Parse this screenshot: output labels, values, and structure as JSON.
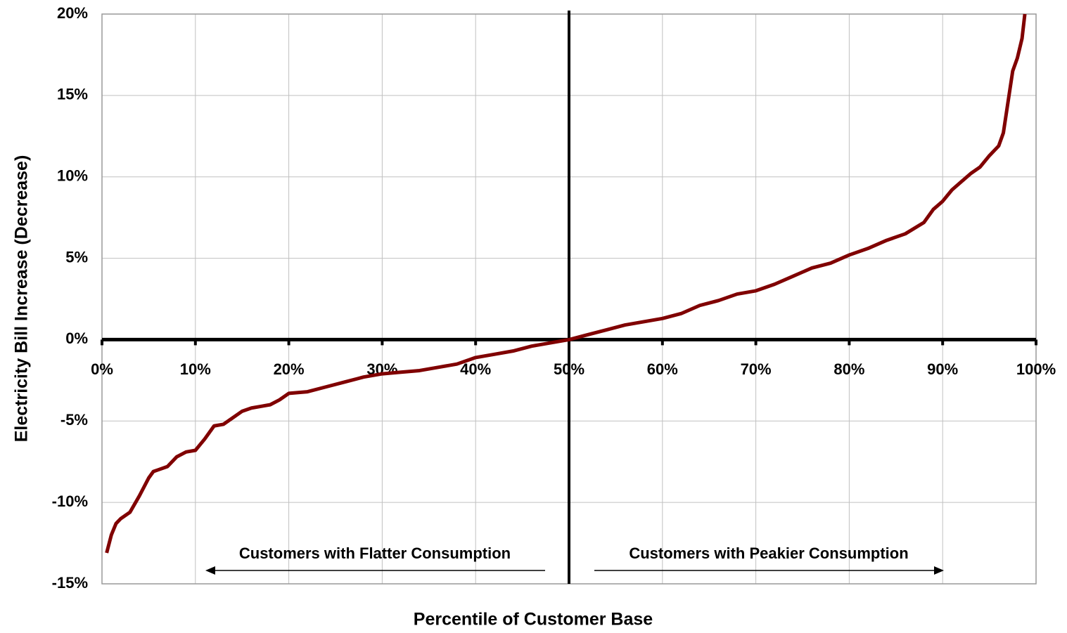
{
  "chart_data": {
    "type": "line",
    "x_label": "Percentile of Customer Base",
    "y_label": "Electricity Bill Increase (Decrease)",
    "annotations": [
      "Customers with Flatter Consumption",
      "Customers with Peakier Consumption"
    ],
    "x": [
      0.5,
      1,
      1.5,
      2,
      3,
      4,
      5,
      5.5,
      6,
      7,
      8,
      9,
      10,
      11,
      12,
      13,
      14,
      15,
      16,
      17,
      18,
      19,
      20,
      22,
      24,
      26,
      28,
      30,
      32,
      34,
      36,
      38,
      40,
      42,
      44,
      46,
      48,
      50,
      52,
      54,
      56,
      58,
      60,
      62,
      64,
      66,
      68,
      70,
      72,
      74,
      76,
      78,
      80,
      82,
      84,
      86,
      88,
      89,
      90,
      91,
      92,
      93,
      94,
      95,
      96,
      96.5,
      97,
      97.5,
      98,
      98.5,
      98.8
    ],
    "series": [
      {
        "color": "#800000",
        "values": [
          -13.1,
          -12,
          -11.3,
          -11.0,
          -10.6,
          -9.6,
          -8.5,
          -8.1,
          -8.0,
          -7.8,
          -7.2,
          -6.9,
          -6.8,
          -6.1,
          -5.3,
          -5.2,
          -4.8,
          -4.4,
          -4.2,
          -4.1,
          -4.0,
          -3.7,
          -3.3,
          -3.2,
          -2.9,
          -2.6,
          -2.3,
          -2.1,
          -2.0,
          -1.9,
          -1.7,
          -1.5,
          -1.1,
          -0.9,
          -0.7,
          -0.4,
          -0.2,
          0,
          0.3,
          0.6,
          0.9,
          1.1,
          1.3,
          1.6,
          2.1,
          2.4,
          2.8,
          3.0,
          3.4,
          3.9,
          4.4,
          4.7,
          5.2,
          5.6,
          6.1,
          6.5,
          7.2,
          8.0,
          8.5,
          9.2,
          9.7,
          10.2,
          10.6,
          11.3,
          11.9,
          12.7,
          14.6,
          16.5,
          17.3,
          18.5,
          20
        ]
      }
    ],
    "xlim": [
      0,
      100
    ],
    "xticks": [
      {
        "value": 0,
        "label": "0%"
      },
      {
        "value": 10,
        "label": "10%"
      },
      {
        "value": 20,
        "label": "20%"
      },
      {
        "value": 30,
        "label": "30%"
      },
      {
        "value": 40,
        "label": "40%"
      },
      {
        "value": 50,
        "label": "50%"
      },
      {
        "value": 60,
        "label": "60%"
      },
      {
        "value": 70,
        "label": "70%"
      },
      {
        "value": 80,
        "label": "80%"
      },
      {
        "value": 90,
        "label": "90%"
      },
      {
        "value": 100,
        "label": "100%"
      }
    ],
    "ylim": [
      -15,
      20
    ],
    "yticks": [
      {
        "value": -15,
        "label": "-15%"
      },
      {
        "value": -10,
        "label": "-10%"
      },
      {
        "value": -5,
        "label": "-5%"
      },
      {
        "value": 0,
        "label": "0%"
      },
      {
        "value": 5,
        "label": "5%"
      },
      {
        "value": 10,
        "label": "10%"
      },
      {
        "value": 15,
        "label": "15%"
      },
      {
        "value": 20,
        "label": "20%"
      }
    ],
    "divider_x": 50,
    "grid": true
  }
}
